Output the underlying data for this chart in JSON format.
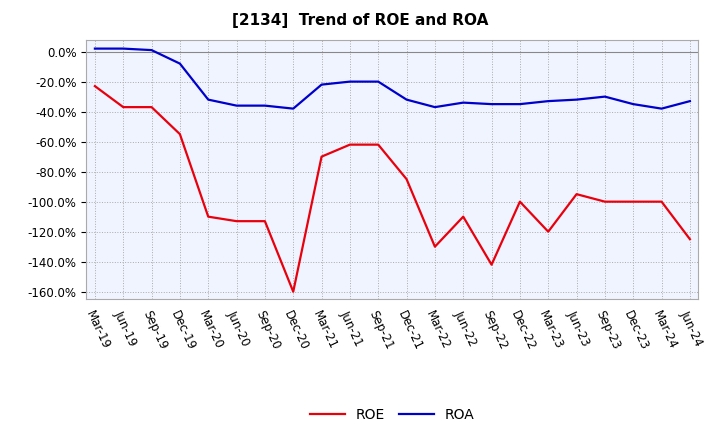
{
  "title": "[2134]  Trend of ROE and ROA",
  "x_labels": [
    "Mar-19",
    "Jun-19",
    "Sep-19",
    "Dec-19",
    "Mar-20",
    "Jun-20",
    "Sep-20",
    "Dec-20",
    "Mar-21",
    "Jun-21",
    "Sep-21",
    "Dec-21",
    "Mar-22",
    "Jun-22",
    "Sep-22",
    "Dec-22",
    "Mar-23",
    "Jun-23",
    "Sep-23",
    "Dec-23",
    "Mar-24",
    "Jun-24"
  ],
  "roe": [
    -23,
    -37,
    -37,
    -55,
    -110,
    -113,
    -113,
    -160,
    -70,
    -62,
    -62,
    -85,
    -130,
    -110,
    -142,
    -100,
    -120,
    -95,
    -100,
    -100,
    -100,
    -125
  ],
  "roa": [
    2,
    2,
    1,
    -8,
    -32,
    -36,
    -36,
    -38,
    -22,
    -20,
    -20,
    -32,
    -37,
    -34,
    -35,
    -35,
    -33,
    -32,
    -30,
    -35,
    -38,
    -33
  ],
  "roe_color": "#e8000d",
  "roa_color": "#0000cc",
  "ylim": [
    -165,
    8
  ],
  "yticks": [
    0,
    -20,
    -40,
    -60,
    -80,
    -100,
    -120,
    -140,
    -160
  ],
  "bg_color": "#ffffff",
  "plot_bg_color": "#f0f4ff",
  "grid_color": "#aaaaaa",
  "title_fontsize": 11,
  "tick_fontsize": 8.5,
  "legend_fontsize": 10
}
